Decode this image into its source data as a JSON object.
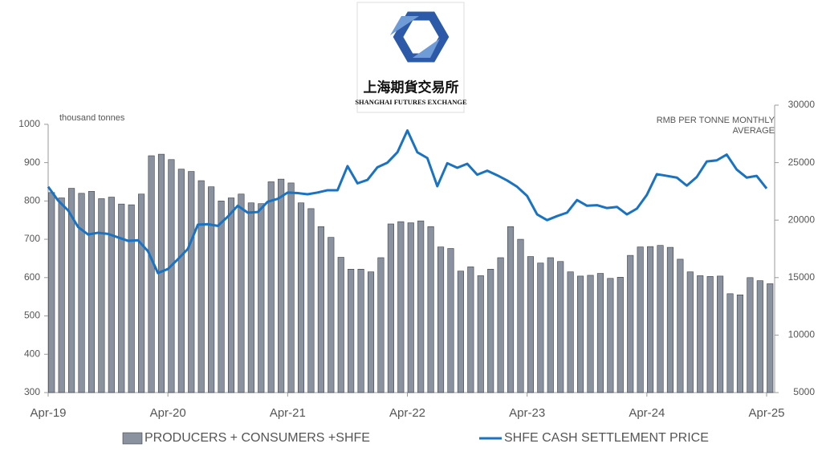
{
  "logo": {
    "name_cn": "上海期貨交易所",
    "name_en": "SHANGHAI FUTURES EXCHANGE"
  },
  "chart_data": {
    "type": "combo",
    "y_label": "thousand tonnes",
    "y2_label": [
      "RMB PER TONNE MONTHLY",
      "AVERAGE"
    ],
    "categories": [
      "Apr-19",
      null,
      null,
      null,
      null,
      null,
      null,
      null,
      null,
      null,
      null,
      null,
      "Apr-20",
      null,
      null,
      null,
      null,
      null,
      null,
      null,
      null,
      null,
      null,
      null,
      "Apr-21",
      null,
      null,
      null,
      null,
      null,
      null,
      null,
      null,
      null,
      null,
      null,
      "Apr-22",
      null,
      null,
      null,
      null,
      null,
      null,
      null,
      null,
      null,
      null,
      null,
      "Apr-23",
      null,
      null,
      null,
      null,
      null,
      null,
      null,
      null,
      null,
      null,
      null,
      "Apr-24",
      null,
      null,
      null,
      null,
      null,
      null,
      null,
      null,
      null,
      null,
      null,
      "Apr-25"
    ],
    "series": [
      {
        "name": "PRODUCERS + CONSUMERS +SHFE",
        "type": "bar",
        "axis": "y",
        "color": "#8a929f",
        "values": [
          822,
          808,
          833,
          820,
          825,
          806,
          810,
          792,
          790,
          818,
          918,
          922,
          908,
          883,
          877,
          853,
          837,
          800,
          808,
          818,
          795,
          793,
          850,
          857,
          847,
          795,
          780,
          733,
          705,
          653,
          622,
          622,
          615,
          652,
          740,
          746,
          743,
          748,
          733,
          680,
          676,
          617,
          628,
          605,
          622,
          652,
          733,
          700,
          655,
          638,
          652,
          642,
          615,
          604,
          606,
          611,
          598,
          601,
          658,
          680,
          681,
          684,
          679,
          648,
          615,
          605,
          603,
          604,
          558,
          555,
          600,
          592,
          584
        ]
      },
      {
        "name": "SHFE CASH SETTLEMENT PRICE",
        "type": "line",
        "axis": "y2",
        "color": "#1a72c2",
        "values": [
          22900,
          21700,
          20850,
          19400,
          18750,
          18900,
          18800,
          18500,
          18200,
          18250,
          17300,
          15400,
          15750,
          16600,
          17500,
          19600,
          19650,
          19500,
          20300,
          21250,
          20650,
          20700,
          21600,
          21850,
          22400,
          22350,
          22250,
          22400,
          22600,
          22600,
          24700,
          23200,
          23500,
          24600,
          25000,
          25900,
          27800,
          25900,
          25400,
          22950,
          24950,
          24550,
          24900,
          23950,
          24300,
          23900,
          23450,
          22900,
          22100,
          20500,
          20000,
          20350,
          20650,
          21750,
          21250,
          21300,
          21050,
          21150,
          20500,
          21000,
          22200,
          24000,
          23850,
          23700,
          23000,
          23750,
          25100,
          25200,
          25700,
          24400,
          23700,
          23850,
          22750
        ]
      }
    ],
    "ylim": [
      300,
      1050
    ],
    "yticks": [
      300,
      400,
      500,
      600,
      700,
      800,
      900,
      1000
    ],
    "y2lim": [
      5000,
      30000
    ],
    "y2ticks": [
      5000,
      10000,
      15000,
      20000,
      25000,
      30000
    ]
  }
}
